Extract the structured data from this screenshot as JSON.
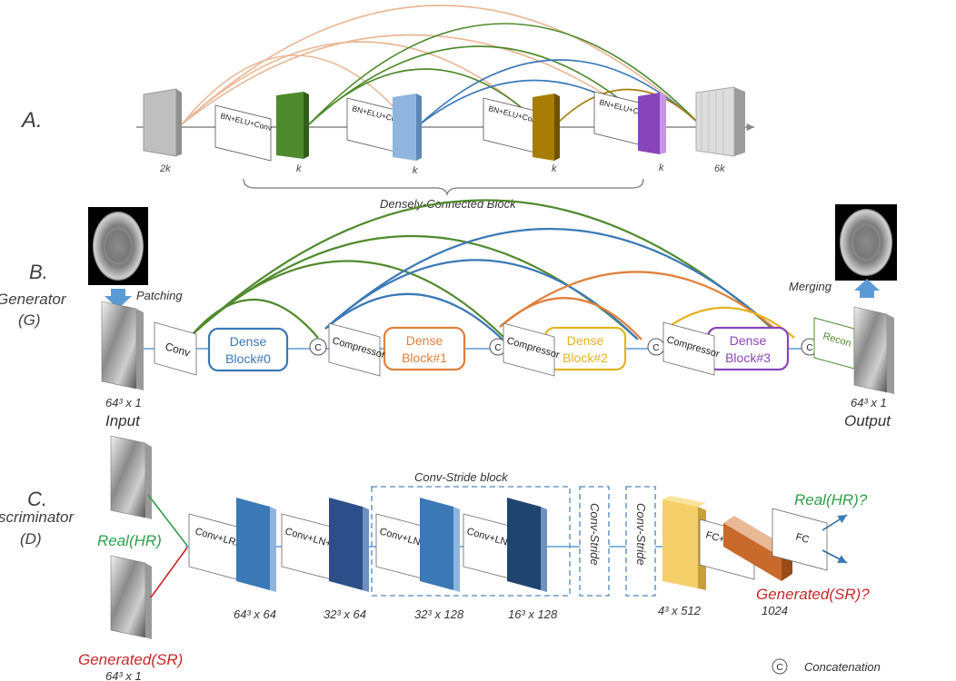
{
  "colors": {
    "green": "#4f8a2e",
    "lightblue": "#8fb5df",
    "blue": "#3b78b6",
    "darkblue": "#2c4f8a",
    "navy": "#1f4470",
    "orange": "#e0803c",
    "peach": "#e9b896",
    "gold": "#e2b322",
    "mustard": "#a87d06",
    "purple": "#8845b9",
    "gray": "#b8b8b8",
    "red": "#c62828",
    "textgreen": "#2e9e4a",
    "boxbluestroke": "#6f9cc6",
    "feedarrow": "#5b9bd5"
  },
  "panel_a": {
    "marker": "A.",
    "bn_label": "BN+ELU+Conv",
    "sizes": [
      "2k",
      "k",
      "k",
      "k",
      "k",
      "6k"
    ],
    "brace_label": "Densely-Connected Block"
  },
  "panel_b": {
    "marker": "B.",
    "name": "Generator",
    "abbr": "(G)",
    "patching": "Patching",
    "merging": "Merging",
    "conv": "Conv",
    "dense": "Dense",
    "blocks": [
      "Block#0",
      "Block#1",
      "Block#2",
      "Block#3"
    ],
    "compressor": "Compressor",
    "recon": "Recon",
    "concat": "C",
    "in_size": "64³ x 1",
    "out_size": "64³ x 1",
    "input": "Input",
    "output": "Output"
  },
  "panel_c": {
    "marker": "C.",
    "name": "scriminator",
    "abbr": "(D)",
    "real": "Real(HR)",
    "generated": "Generated(SR)",
    "gen_size": "64³ x 1",
    "layers": [
      "Conv+LRELU",
      "Conv+LN+LRELU",
      "Conv+LN+LRELU",
      "Conv+LN+LRELU"
    ],
    "stride_block_label": "Conv-Stride block",
    "conv_stride": "Conv-Stride",
    "fc_lrelu": "FC+LRELU",
    "fc": "FC",
    "real_q": "Real(HR)?",
    "gen_q": "Generated(SR)?",
    "sizes": [
      "64³ x 64",
      "32³ x 64",
      "32³ x 128",
      "16³ x 128",
      "4³ x 512",
      "1024"
    ]
  },
  "legend": {
    "symbol": "C",
    "text": "Concatenation"
  }
}
